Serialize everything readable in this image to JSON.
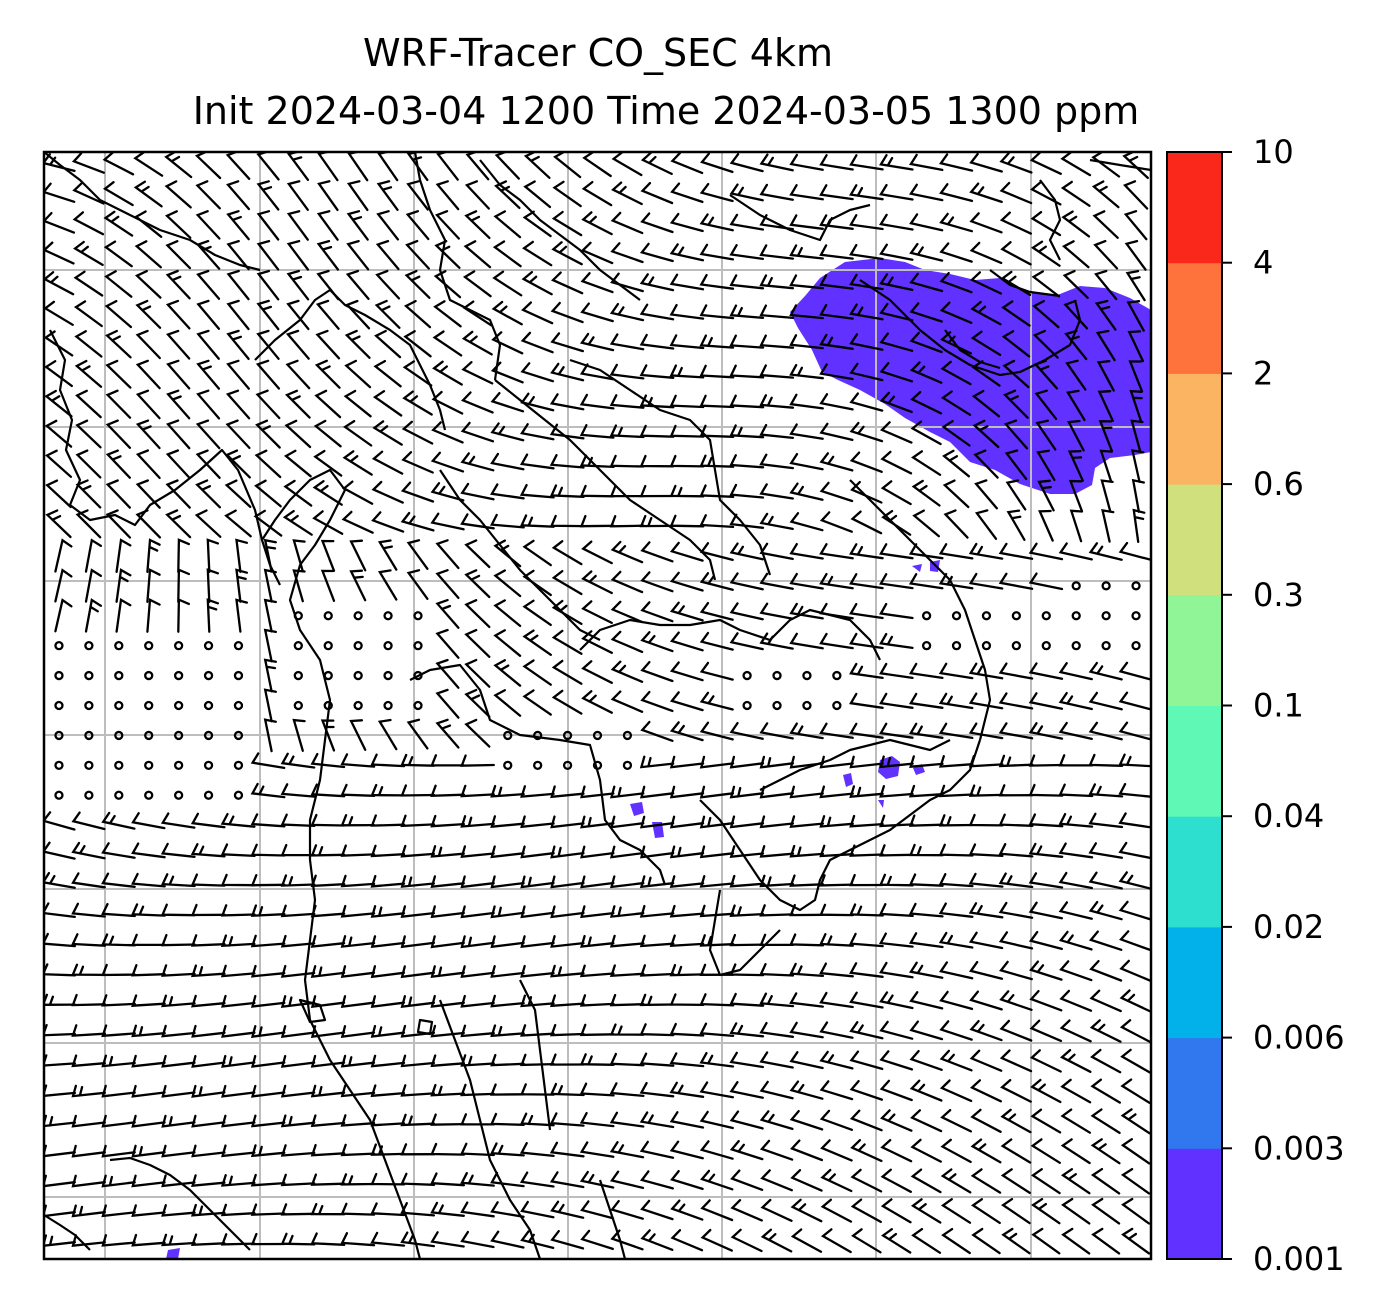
{
  "figure": {
    "title_line1": "WRF-Tracer CO_SEC 4km",
    "title_line2": "Init 2024-03-04 1200 Time 2024-03-05 1300 ppm"
  },
  "colorbar": {
    "levels": [
      "0.001",
      "0.003",
      "0.006",
      "0.02",
      "0.04",
      "0.1",
      "0.3",
      "0.6",
      "2",
      "4",
      "10"
    ],
    "colors": [
      "#6131ff",
      "#3178ef",
      "#03b1ea",
      "#2ddfcf",
      "#5ff8b4",
      "#90f596",
      "#cfe07d",
      "#fbb461",
      "#fe733b",
      "#f9281a"
    ]
  },
  "map": {
    "plume_color": "#6131ff",
    "gridline_color": "#bdbdbd",
    "coastline_color": "#000000",
    "wind_barb_color": "#000000"
  }
}
